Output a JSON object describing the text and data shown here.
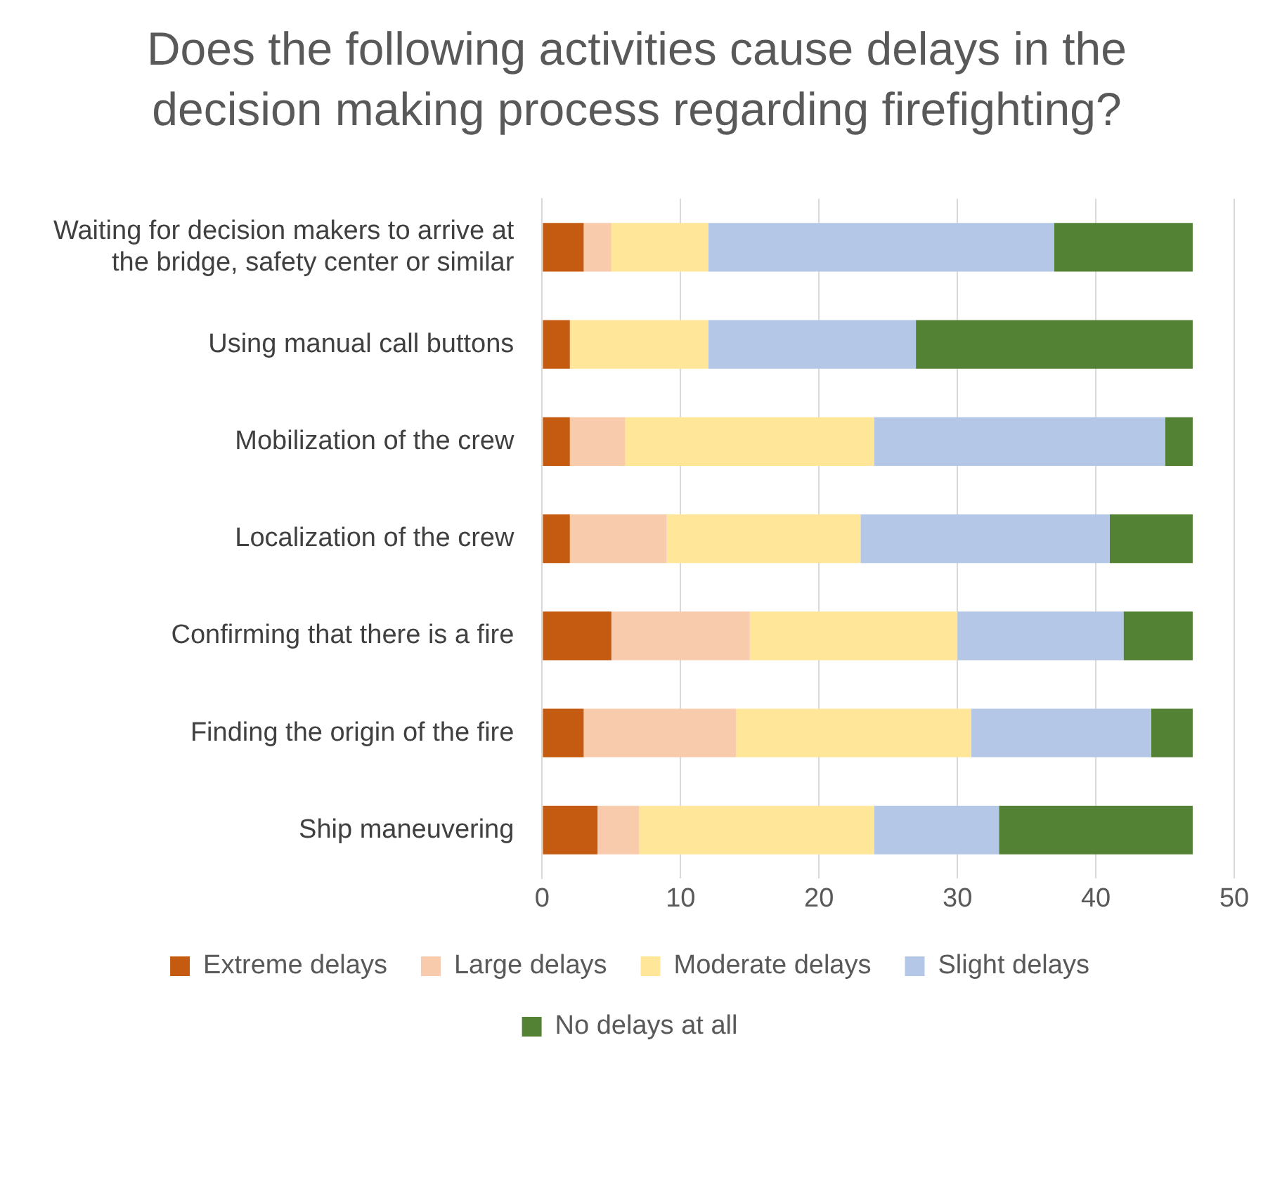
{
  "chart_data": {
    "type": "bar",
    "orientation": "horizontal",
    "stacked": true,
    "title": "Does the following activities cause delays in the decision making process regarding firefighting?",
    "categories": [
      "Waiting for decision makers to arrive at the bridge, safety center or similar",
      "Using manual call buttons",
      "Mobilization of the crew",
      "Localization of the crew",
      "Confirming that there is a fire",
      "Finding the origin of the fire",
      "Ship maneuvering"
    ],
    "series": [
      {
        "name": "Extreme delays",
        "color": "#c55a11",
        "values": [
          3,
          2,
          2,
          2,
          5,
          3,
          4
        ]
      },
      {
        "name": "Large delays",
        "color": "#f8cbad",
        "values": [
          2,
          0,
          4,
          7,
          10,
          11,
          3
        ]
      },
      {
        "name": "Moderate delays",
        "color": "#ffe699",
        "values": [
          7,
          10,
          18,
          14,
          15,
          17,
          17
        ]
      },
      {
        "name": "Slight delays",
        "color": "#b4c7e7",
        "values": [
          25,
          15,
          21,
          18,
          12,
          13,
          9
        ]
      },
      {
        "name": "No delays at all",
        "color": "#548235",
        "values": [
          10,
          20,
          2,
          6,
          5,
          3,
          14
        ]
      }
    ],
    "xlim": [
      0,
      50
    ],
    "xticks": [
      0,
      10,
      20,
      30,
      40,
      50
    ],
    "grid": "x",
    "legend": "bottom"
  }
}
